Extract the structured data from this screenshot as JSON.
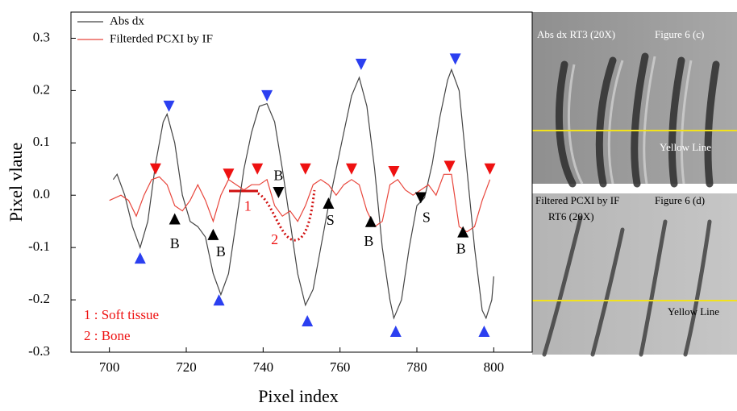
{
  "chart_data": {
    "type": "line",
    "xlabel": "Pixel index",
    "ylabel": "Pixel vlaue",
    "xlim": [
      690,
      810
    ],
    "ylim": [
      -0.3,
      0.35
    ],
    "xticks": [
      700,
      720,
      740,
      760,
      780,
      800
    ],
    "yticks": [
      -0.3,
      -0.2,
      -0.1,
      {
        "value": 0,
        "label": "0.0"
      },
      0.1,
      0.2,
      0.3
    ],
    "legend": "upper left",
    "series": [
      {
        "name": "Abs dx",
        "color": "#444444",
        "x": [
          701,
          702,
          704,
          706,
          708,
          710,
          712,
          714,
          715,
          717,
          719,
          721,
          723,
          725,
          727,
          729,
          731,
          733,
          735,
          737,
          739,
          741,
          743,
          745,
          747,
          749,
          751,
          753,
          755,
          757,
          759,
          761,
          763,
          765,
          767,
          769,
          771,
          773,
          774,
          776,
          778,
          780,
          782,
          784,
          786,
          788,
          789,
          791,
          793,
          795,
          797,
          798,
          799.5,
          800
        ],
        "values": [
          0.03,
          0.04,
          0.0,
          -0.06,
          -0.1,
          -0.05,
          0.06,
          0.14,
          0.155,
          0.1,
          0.0,
          -0.05,
          -0.06,
          -0.08,
          -0.15,
          -0.19,
          -0.15,
          -0.05,
          0.05,
          0.12,
          0.17,
          0.175,
          0.14,
          0.05,
          -0.05,
          -0.15,
          -0.21,
          -0.18,
          -0.1,
          -0.02,
          0.05,
          0.12,
          0.19,
          0.225,
          0.17,
          0.05,
          -0.1,
          -0.2,
          -0.235,
          -0.2,
          -0.1,
          -0.02,
          -0.005,
          0.06,
          0.15,
          0.22,
          0.24,
          0.2,
          0.05,
          -0.1,
          -0.22,
          -0.235,
          -0.2,
          -0.155
        ]
      },
      {
        "name": "Filterded PCXI by IF",
        "color": "#e8463c",
        "x": [
          700,
          703,
          705,
          707,
          709,
          711,
          713,
          715,
          717,
          719,
          721,
          723,
          725,
          727,
          729,
          731,
          733,
          735,
          737,
          739,
          741,
          743,
          745,
          747,
          749,
          751,
          753,
          755,
          757,
          759,
          761,
          763,
          765,
          767,
          769,
          771,
          773,
          775,
          777,
          779,
          781,
          783,
          785,
          787,
          789,
          791,
          793,
          795,
          797,
          799
        ],
        "values": [
          -0.01,
          0.0,
          -0.01,
          -0.04,
          0.0,
          0.03,
          0.035,
          0.02,
          -0.02,
          -0.03,
          -0.01,
          0.02,
          -0.01,
          -0.05,
          0.0,
          0.03,
          0.02,
          0.01,
          0.02,
          0.02,
          0.03,
          -0.02,
          -0.04,
          -0.03,
          -0.05,
          -0.02,
          0.02,
          0.03,
          0.02,
          0.0,
          0.02,
          0.03,
          0.02,
          -0.03,
          -0.06,
          -0.05,
          0.02,
          0.03,
          0.01,
          0.0,
          0.01,
          0.02,
          0.0,
          0.04,
          0.04,
          -0.06,
          -0.07,
          -0.06,
          -0.01,
          0.03
        ]
      }
    ],
    "markers": [
      {
        "x": 715.5,
        "y": 0.17,
        "color": "#2b3ff0",
        "shape": "down"
      },
      {
        "x": 741,
        "y": 0.19,
        "color": "#2b3ff0",
        "shape": "down"
      },
      {
        "x": 765.5,
        "y": 0.25,
        "color": "#2b3ff0",
        "shape": "down"
      },
      {
        "x": 790,
        "y": 0.26,
        "color": "#2b3ff0",
        "shape": "down"
      },
      {
        "x": 708,
        "y": -0.12,
        "color": "#2b3ff0",
        "shape": "up"
      },
      {
        "x": 728.5,
        "y": -0.2,
        "color": "#2b3ff0",
        "shape": "up"
      },
      {
        "x": 751.5,
        "y": -0.24,
        "color": "#2b3ff0",
        "shape": "up"
      },
      {
        "x": 774.5,
        "y": -0.26,
        "color": "#2b3ff0",
        "shape": "up"
      },
      {
        "x": 797.5,
        "y": -0.26,
        "color": "#2b3ff0",
        "shape": "up"
      },
      {
        "x": 712,
        "y": 0.05,
        "color": "#ee1111",
        "shape": "down"
      },
      {
        "x": 731,
        "y": 0.04,
        "color": "#ee1111",
        "shape": "down"
      },
      {
        "x": 738.5,
        "y": 0.05,
        "color": "#ee1111",
        "shape": "down"
      },
      {
        "x": 751,
        "y": 0.05,
        "color": "#ee1111",
        "shape": "down"
      },
      {
        "x": 763,
        "y": 0.05,
        "color": "#ee1111",
        "shape": "down"
      },
      {
        "x": 774,
        "y": 0.045,
        "color": "#ee1111",
        "shape": "down"
      },
      {
        "x": 788.5,
        "y": 0.055,
        "color": "#ee1111",
        "shape": "down"
      },
      {
        "x": 799,
        "y": 0.05,
        "color": "#ee1111",
        "shape": "down"
      },
      {
        "x": 744,
        "y": 0.005,
        "color": "#000000",
        "shape": "down"
      },
      {
        "x": 781,
        "y": -0.005,
        "color": "#000000",
        "shape": "down"
      },
      {
        "x": 717,
        "y": -0.045,
        "color": "#000000",
        "shape": "up"
      },
      {
        "x": 727,
        "y": -0.075,
        "color": "#000000",
        "shape": "up"
      },
      {
        "x": 757,
        "y": -0.015,
        "color": "#000000",
        "shape": "up"
      },
      {
        "x": 768,
        "y": -0.05,
        "color": "#000000",
        "shape": "up"
      },
      {
        "x": 792,
        "y": -0.07,
        "color": "#000000",
        "shape": "up"
      }
    ],
    "annotations": [
      {
        "text": "B",
        "x": 717,
        "y": -0.095,
        "color": "#000000"
      },
      {
        "text": "B",
        "x": 729,
        "y": -0.11,
        "color": "#000000"
      },
      {
        "text": "B",
        "x": 744,
        "y": 0.035,
        "color": "#000000"
      },
      {
        "text": "S",
        "x": 757.5,
        "y": -0.05,
        "color": "#000000"
      },
      {
        "text": "B",
        "x": 767.5,
        "y": -0.09,
        "color": "#000000"
      },
      {
        "text": "S",
        "x": 782.5,
        "y": -0.045,
        "color": "#000000"
      },
      {
        "text": "B",
        "x": 791.5,
        "y": -0.105,
        "color": "#000000"
      },
      {
        "text": "1",
        "x": 736,
        "y": -0.023,
        "color": "#ee1111"
      },
      {
        "text": "2",
        "x": 743,
        "y": -0.087,
        "color": "#ee1111"
      }
    ],
    "notes": [
      "1 : Soft tissue",
      "2 : Bone"
    ]
  },
  "panels": [
    {
      "title": "Abs dx RT3 (20X)",
      "figure": "Figure 6 (c)",
      "line_label": "Yellow Line"
    },
    {
      "title": "Filtered PCXI by IF",
      "figure": "Figure 6 (d)",
      "subtitle": "RT6 (20X)",
      "line_label": "Yellow Line"
    }
  ]
}
